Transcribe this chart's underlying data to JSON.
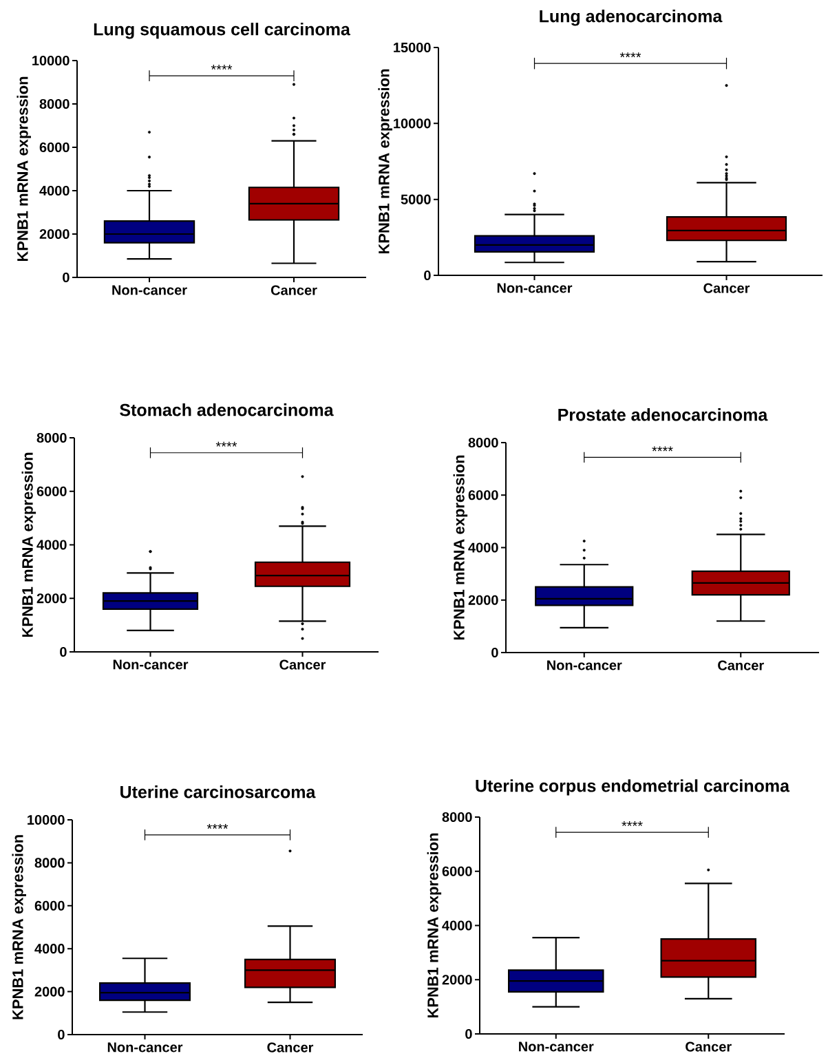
{
  "chart_data": [
    {
      "type": "box",
      "title": "Lung squamous cell carcinoma",
      "ylabel": "KPNB1 mRNA expression",
      "categories": [
        "Non-cancer",
        "Cancer"
      ],
      "colors": [
        "#000080",
        "#a00000"
      ],
      "ylim": [
        0,
        10000
      ],
      "yticks": [
        0,
        2000,
        4000,
        6000,
        8000,
        10000
      ],
      "annotations": [
        "****"
      ],
      "boxes": [
        {
          "low": 850,
          "q1": 1600,
          "median": 2000,
          "q3": 2600,
          "high": 4000,
          "outliers": [
            4200,
            4300,
            4450,
            4600,
            4700,
            5550,
            6700
          ]
        },
        {
          "low": 650,
          "q1": 2650,
          "median": 3400,
          "q3": 4150,
          "high": 6300,
          "outliers": [
            6600,
            6600,
            6800,
            7000,
            7350,
            8900
          ]
        }
      ]
    },
    {
      "type": "box",
      "title": "Lung adenocarcinoma",
      "ylabel": "KPNB1 mRNA expression",
      "categories": [
        "Non-cancer",
        "Cancer"
      ],
      "colors": [
        "#000080",
        "#a00000"
      ],
      "ylim": [
        0,
        15000
      ],
      "yticks": [
        0,
        5000,
        10000,
        15000
      ],
      "annotations": [
        "****"
      ],
      "boxes": [
        {
          "low": 850,
          "q1": 1550,
          "median": 2000,
          "q3": 2600,
          "high": 4000,
          "outliers": [
            4250,
            4400,
            4600,
            4700,
            5550,
            6700
          ]
        },
        {
          "low": 900,
          "q1": 2300,
          "median": 2950,
          "q3": 3850,
          "high": 6100,
          "outliers": [
            6300,
            6400,
            6550,
            6700,
            6950,
            7300,
            7800,
            12500
          ]
        }
      ]
    },
    {
      "type": "box",
      "title": "Stomach adenocarcinoma",
      "ylabel": "KPNB1 mRNA expression",
      "categories": [
        "Non-cancer",
        "Cancer"
      ],
      "colors": [
        "#000080",
        "#a00000"
      ],
      "ylim": [
        0,
        8000
      ],
      "yticks": [
        0,
        2000,
        4000,
        6000,
        8000
      ],
      "annotations": [
        "****"
      ],
      "boxes": [
        {
          "low": 800,
          "q1": 1600,
          "median": 1900,
          "q3": 2200,
          "high": 2950,
          "outliers": [
            3100,
            3150,
            3750,
            3750
          ]
        },
        {
          "low": 1150,
          "q1": 2450,
          "median": 2850,
          "q3": 3350,
          "high": 4700,
          "outliers": [
            500,
            850,
            1050,
            4800,
            4850,
            5150,
            5350,
            5400,
            6550
          ]
        }
      ]
    },
    {
      "type": "box",
      "title": "Prostate adenocarcinoma",
      "ylabel": "KPNB1 mRNA expression",
      "categories": [
        "Non-cancer",
        "Cancer"
      ],
      "colors": [
        "#000080",
        "#a00000"
      ],
      "ylim": [
        0,
        8000
      ],
      "yticks": [
        0,
        2000,
        4000,
        6000,
        8000
      ],
      "annotations": [
        "****"
      ],
      "boxes": [
        {
          "low": 950,
          "q1": 1800,
          "median": 2050,
          "q3": 2500,
          "high": 3350,
          "outliers": [
            3600,
            3900,
            4250
          ]
        },
        {
          "low": 1200,
          "q1": 2200,
          "median": 2650,
          "q3": 3100,
          "high": 4500,
          "outliers": [
            4700,
            4850,
            5000,
            5100,
            5300,
            5900,
            6150
          ]
        }
      ]
    },
    {
      "type": "box",
      "title": "Uterine carcinosarcoma",
      "ylabel": "KPNB1 mRNA expression",
      "categories": [
        "Non-cancer",
        "Cancer"
      ],
      "colors": [
        "#000080",
        "#a00000"
      ],
      "ylim": [
        0,
        10000
      ],
      "yticks": [
        0,
        2000,
        4000,
        6000,
        8000,
        10000
      ],
      "annotations": [
        "****"
      ],
      "boxes": [
        {
          "low": 1050,
          "q1": 1600,
          "median": 1950,
          "q3": 2400,
          "high": 3550
        },
        {
          "low": 1500,
          "q1": 2200,
          "median": 3000,
          "q3": 3500,
          "high": 5050,
          "outliers": [
            8550
          ]
        }
      ]
    },
    {
      "type": "box",
      "title": "Uterine corpus endometrial carcinoma",
      "ylabel": "KPNB1 mRNA expression",
      "categories": [
        "Non-cancer",
        "Cancer"
      ],
      "colors": [
        "#000080",
        "#a00000"
      ],
      "ylim": [
        0,
        8000
      ],
      "yticks": [
        0,
        2000,
        4000,
        6000,
        8000
      ],
      "annotations": [
        "****"
      ],
      "boxes": [
        {
          "low": 1000,
          "q1": 1550,
          "median": 1950,
          "q3": 2350,
          "high": 3550
        },
        {
          "low": 1300,
          "q1": 2100,
          "median": 2700,
          "q3": 3500,
          "high": 5550,
          "outliers": [
            6050
          ]
        }
      ]
    }
  ]
}
